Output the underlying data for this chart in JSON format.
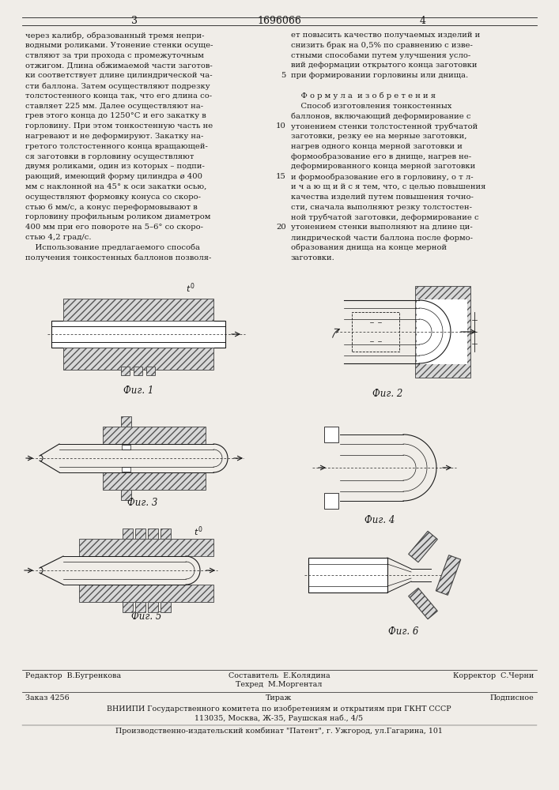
{
  "page_number_left": "3",
  "patent_number": "1696066",
  "page_number_right": "4",
  "bg_color": "#f0ede8",
  "text_color": "#1a1a1a",
  "left_column_text": [
    "через калибр, образованный тремя непри-",
    "водными роликами. Утонение стенки осуще-",
    "ствляют за три прохода с промежуточным",
    "отжигом. Длина обжимаемой части заготов-",
    "ки соответствует длине цилиндрической ча-",
    "сти баллона. Затем осуществляют подрезку",
    "толстостенного конца так, что его длина со-",
    "ставляет 225 мм. Далее осуществляют на-",
    "грев этого конца до 1250°С и его закатку в",
    "горловину. При этом тонкостенную часть не",
    "нагревают и не деформируют. Закатку на-",
    "гретого толстостенного конца вращающей-",
    "ся заготовки в горловину осуществляют",
    "двумя роликами, один из которых – подпи-",
    "рающий, имеющий форму цилиндра ø 400",
    "мм с наклонной на 45° к оси закатки осью,",
    "осуществляют формовку конуса со скоро-",
    "стью 6 мм/с, а конус переформовывают в",
    "горловину профильным роликом диаметром",
    "400 мм при его повороте на 5–6° со скоро-",
    "стью 4,2 град/с.",
    "    Использование предлагаемого способа",
    "получения тонкостенных баллонов позволя-"
  ],
  "right_column_text": [
    "ет повысить качество получаемых изделий и",
    "снизить брак на 0,5% по сравнению с изве-",
    "стными способами путем улучшения усло-",
    "вий деформации открытого конца заготовки",
    "при формировании горловины или днища.",
    "",
    "    Ф о р м у л а  и з о б р е т е н и я",
    "    Способ изготовления тонкостенных",
    "баллонов, включающий деформирование с",
    "утонением стенки толстостенной трубчатой",
    "заготовки, резку ее на мерные заготовки,",
    "нагрев одного конца мерной заготовки и",
    "формообразование его в днище, нагрев не-",
    "деформированного конца мерной заготовки",
    "и формообразование его в горловину, о т л-",
    "и ч а ю щ и й с я тем, что, с целью повышения",
    "качества изделий путем повышения точно-",
    "сти, сначала выполняют резку толстостен-",
    "ной трубчатой заготовки, деформирование с",
    "утонением стенки выполняют на длине ци-",
    "линдрической части баллона после формо-",
    "образования днища на конце мерной",
    "заготовки."
  ],
  "line_number_rows": [
    4,
    9,
    14,
    19
  ],
  "line_number_vals": [
    "5",
    "10",
    "15",
    "20"
  ],
  "footer_editor": "Редактор  В.Бугренкова",
  "footer_compiler": "Составитель  Е.Колядина",
  "footer_techred": "Техред  М.Моргентал",
  "footer_corrector": "Корректор  С.Черни",
  "footer_order": "Заказ 4256",
  "footer_print": "Тираж",
  "footer_subscription": "Подписное",
  "footer_vniipи": "ВНИИПИ Государственного комитета по изобретениям и открытиям при ГКНТ СССР",
  "footer_address": "113035, Москва, Ж-35, Раушская наб., 4/5",
  "footer_publisher": "Производственно-издательский комбинат \"Патент\", г. Ужгород, ул.Гагарина, 101"
}
